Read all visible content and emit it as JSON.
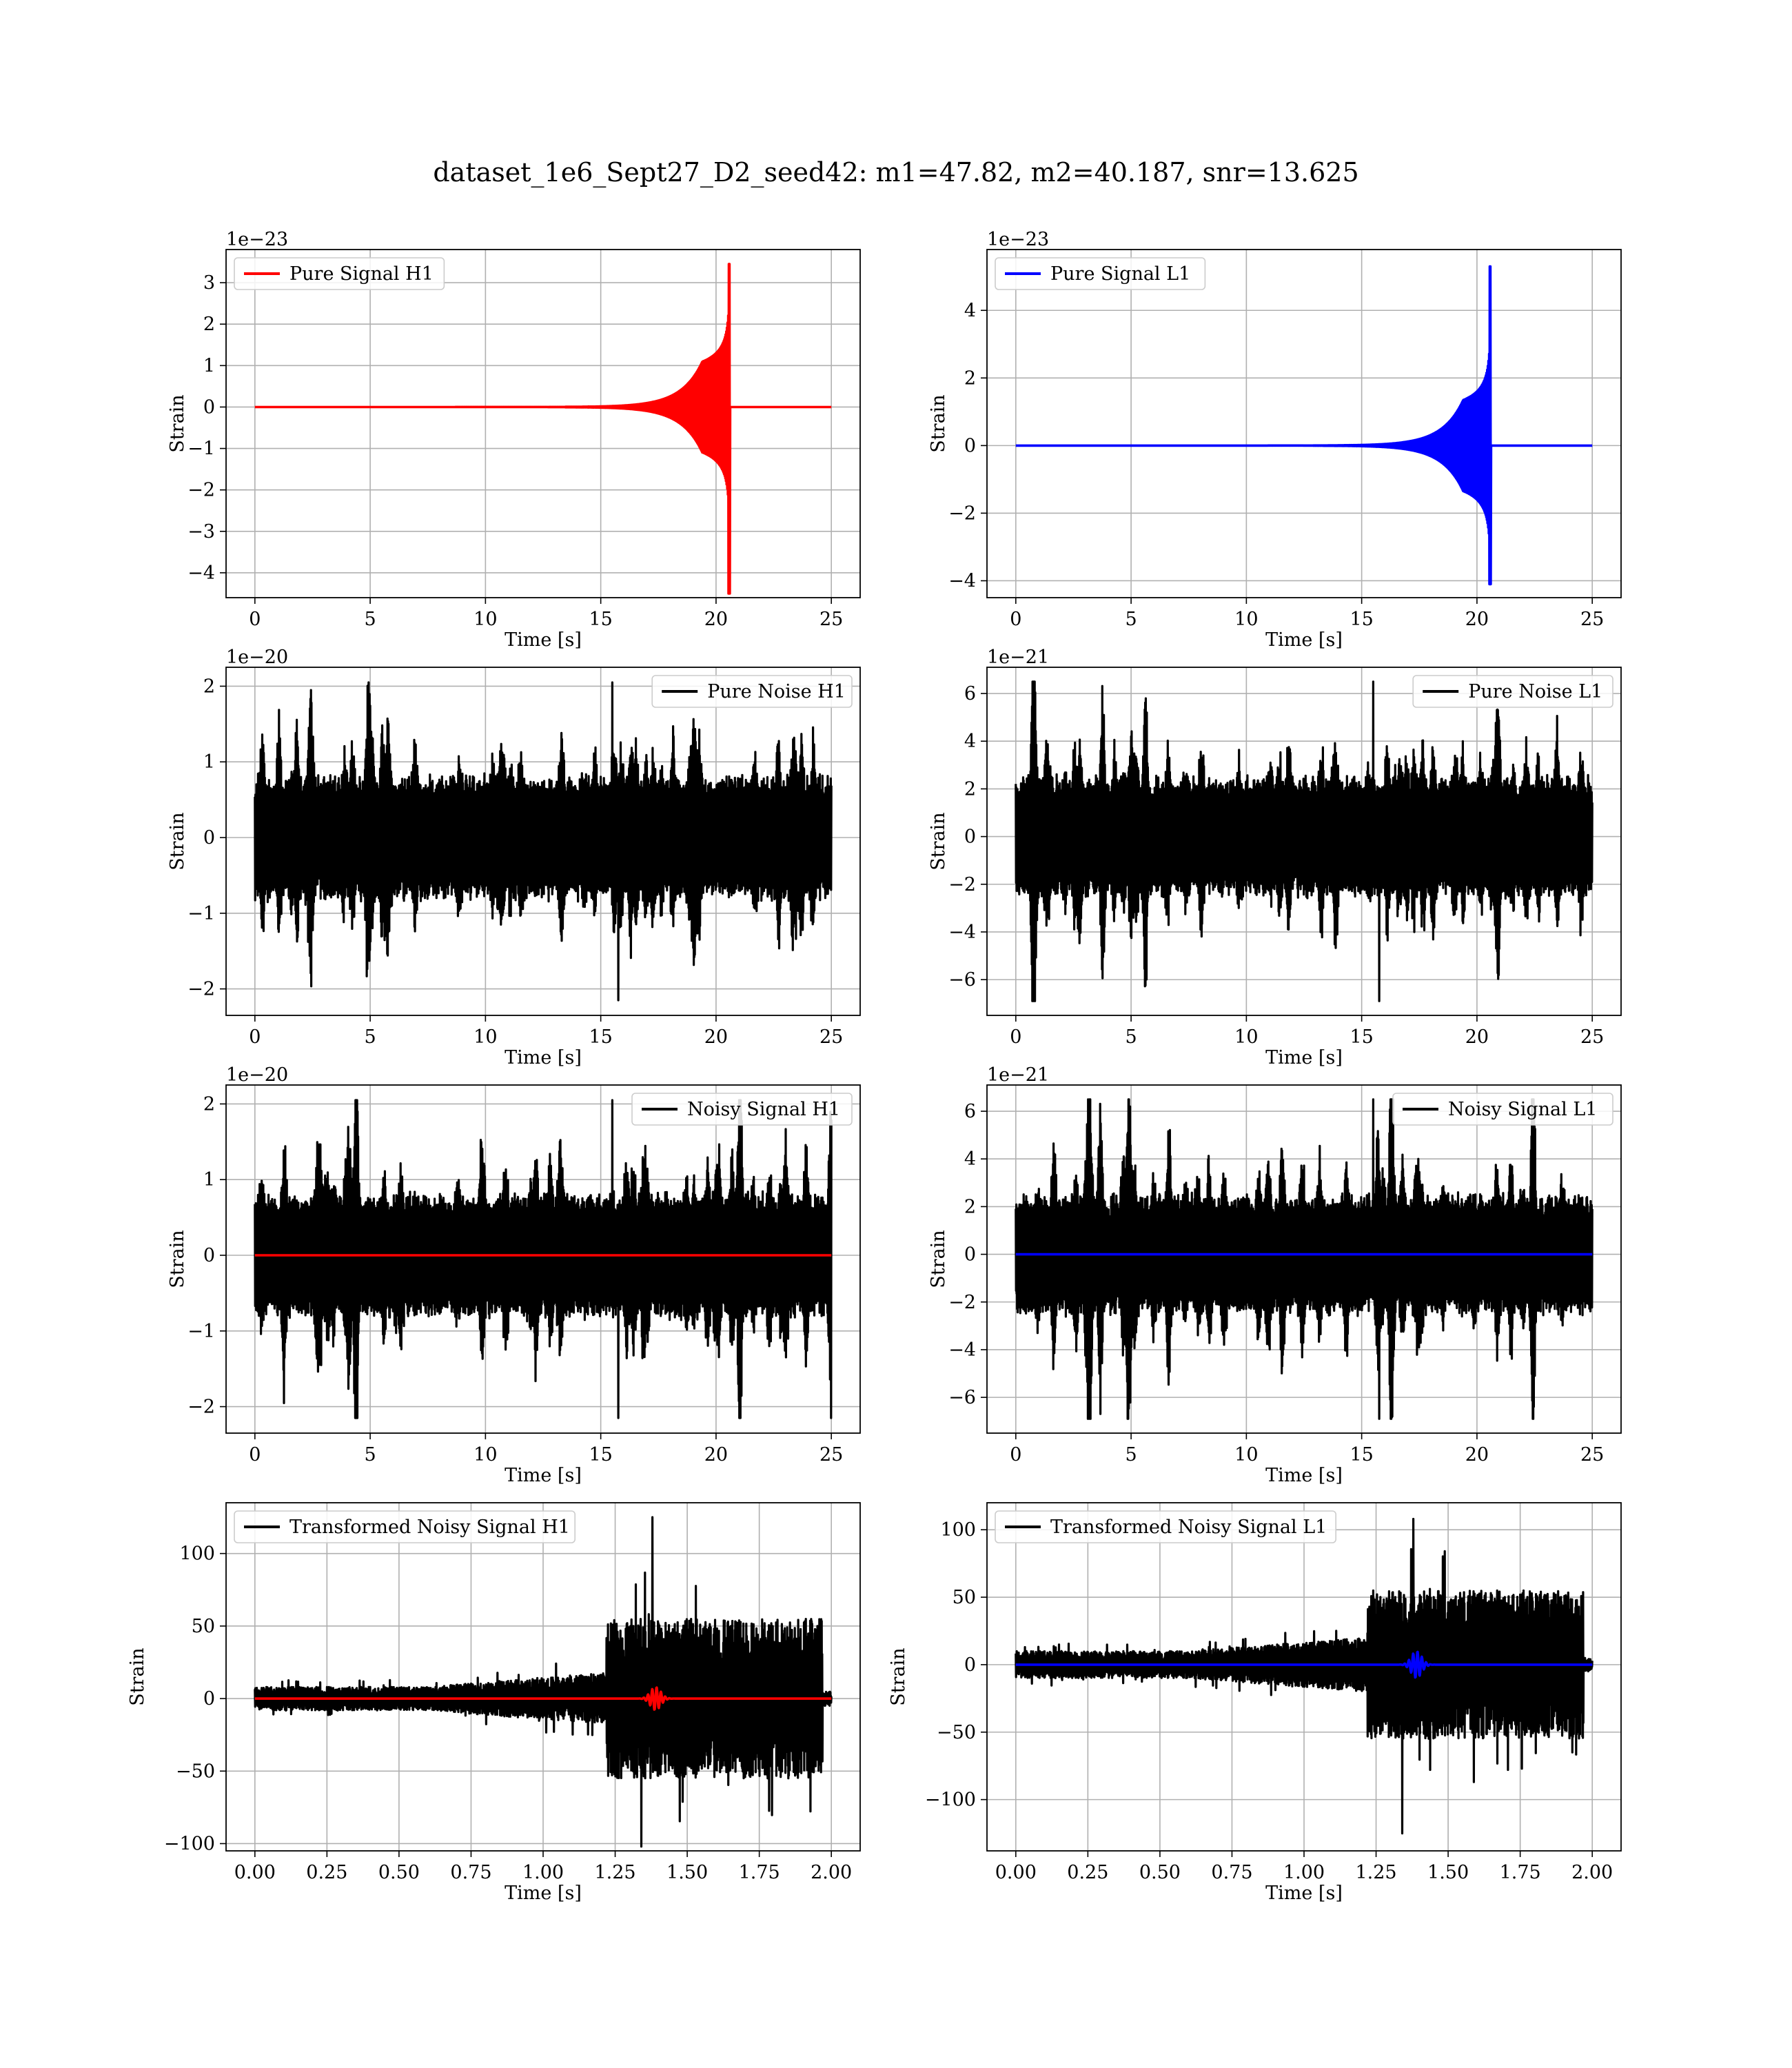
{
  "figure": {
    "suptitle": "dataset_1e6_Sept27_D2_seed42: m1=47.82, m2=40.187, snr=13.625"
  },
  "colors": {
    "h1_signal": "#ff0000",
    "l1_signal": "#0000ff",
    "noise": "#000000",
    "grid": "#b0b0b0"
  },
  "chart_data": [
    {
      "id": "pure-signal-h1",
      "type": "line",
      "xlabel": "Time [s]",
      "ylabel": "Strain",
      "offset_text": "1e−23",
      "xlim": [
        -1.25,
        26.25
      ],
      "ylim": [
        -4.6,
        3.8
      ],
      "xticks": [
        0,
        5,
        10,
        15,
        20,
        25
      ],
      "xtick_labels": [
        "0",
        "5",
        "10",
        "15",
        "20",
        "25"
      ],
      "yticks": [
        -4,
        -3,
        -2,
        -1,
        0,
        1,
        2,
        3
      ],
      "ytick_labels": [
        "−4",
        "−3",
        "−2",
        "−1",
        "0",
        "1",
        "2",
        "3"
      ],
      "legend": {
        "position": "upper left"
      },
      "series": [
        {
          "name": "Pure Signal H1",
          "color": "#ff0000",
          "kind": "chirp",
          "t_start": 0,
          "t_end": 25,
          "t_merger": 20.6,
          "peak_pos": 3.45,
          "peak_neg": -4.5,
          "envelope_at_20": 1.3
        }
      ]
    },
    {
      "id": "pure-signal-l1",
      "type": "line",
      "xlabel": "Time [s]",
      "ylabel": "Strain",
      "offset_text": "1e−23",
      "xlim": [
        -1.25,
        26.25
      ],
      "ylim": [
        -4.5,
        5.8
      ],
      "xticks": [
        0,
        5,
        10,
        15,
        20,
        25
      ],
      "xtick_labels": [
        "0",
        "5",
        "10",
        "15",
        "20",
        "25"
      ],
      "yticks": [
        -4,
        -2,
        0,
        2,
        4
      ],
      "ytick_labels": [
        "−4",
        "−2",
        "0",
        "2",
        "4"
      ],
      "legend": {
        "position": "upper left"
      },
      "series": [
        {
          "name": "Pure Signal L1",
          "color": "#0000ff",
          "kind": "chirp",
          "t_start": 0,
          "t_end": 25,
          "t_merger": 20.6,
          "peak_pos": 5.3,
          "peak_neg": -4.1,
          "envelope_at_20": 1.6
        }
      ]
    },
    {
      "id": "pure-noise-h1",
      "type": "line",
      "xlabel": "Time [s]",
      "ylabel": "Strain",
      "offset_text": "1e−20",
      "xlim": [
        -1.25,
        26.25
      ],
      "ylim": [
        -2.35,
        2.25
      ],
      "xticks": [
        0,
        5,
        10,
        15,
        20,
        25
      ],
      "xtick_labels": [
        "0",
        "5",
        "10",
        "15",
        "20",
        "25"
      ],
      "yticks": [
        -2,
        -1,
        0,
        1,
        2
      ],
      "ytick_labels": [
        "−2",
        "−1",
        "0",
        "1",
        "2"
      ],
      "legend": {
        "position": "upper right"
      },
      "series": [
        {
          "name": "Pure Noise H1",
          "color": "#000000",
          "kind": "noise",
          "t_start": 0,
          "t_end": 25,
          "base_amplitude": 0.75,
          "peak_pos": 2.05,
          "peak_neg": -2.15
        }
      ]
    },
    {
      "id": "pure-noise-l1",
      "type": "line",
      "xlabel": "Time [s]",
      "ylabel": "Strain",
      "offset_text": "1e−21",
      "xlim": [
        -1.25,
        26.25
      ],
      "ylim": [
        -7.5,
        7.1
      ],
      "xticks": [
        0,
        5,
        10,
        15,
        20,
        25
      ],
      "xtick_labels": [
        "0",
        "5",
        "10",
        "15",
        "20",
        "25"
      ],
      "yticks": [
        -6,
        -4,
        -2,
        0,
        2,
        4,
        6
      ],
      "ytick_labels": [
        "−6",
        "−4",
        "−2",
        "0",
        "2",
        "4",
        "6"
      ],
      "legend": {
        "position": "upper right"
      },
      "series": [
        {
          "name": "Pure Noise L1",
          "color": "#000000",
          "kind": "noise",
          "t_start": 0,
          "t_end": 25,
          "base_amplitude": 2.3,
          "peak_pos": 6.5,
          "peak_neg": -6.9
        }
      ]
    },
    {
      "id": "noisy-signal-h1",
      "type": "line",
      "xlabel": "Time [s]",
      "ylabel": "Strain",
      "offset_text": "1e−20",
      "xlim": [
        -1.25,
        26.25
      ],
      "ylim": [
        -2.35,
        2.25
      ],
      "xticks": [
        0,
        5,
        10,
        15,
        20,
        25
      ],
      "xtick_labels": [
        "0",
        "5",
        "10",
        "15",
        "20",
        "25"
      ],
      "yticks": [
        -2,
        -1,
        0,
        1,
        2
      ],
      "ytick_labels": [
        "−2",
        "−1",
        "0",
        "1",
        "2"
      ],
      "legend": {
        "position": "upper right"
      },
      "series": [
        {
          "name": "Noisy Signal H1",
          "color": "#000000",
          "kind": "noise",
          "t_start": 0,
          "t_end": 25,
          "base_amplitude": 0.75,
          "peak_pos": 2.05,
          "peak_neg": -2.15
        },
        {
          "color": "#ff0000",
          "kind": "flat",
          "t_start": 0,
          "t_end": 25,
          "value": 0
        }
      ]
    },
    {
      "id": "noisy-signal-l1",
      "type": "line",
      "xlabel": "Time [s]",
      "ylabel": "Strain",
      "offset_text": "1e−21",
      "xlim": [
        -1.25,
        26.25
      ],
      "ylim": [
        -7.5,
        7.1
      ],
      "xticks": [
        0,
        5,
        10,
        15,
        20,
        25
      ],
      "xtick_labels": [
        "0",
        "5",
        "10",
        "15",
        "20",
        "25"
      ],
      "yticks": [
        -6,
        -4,
        -2,
        0,
        2,
        4,
        6
      ],
      "ytick_labels": [
        "−6",
        "−4",
        "−2",
        "0",
        "2",
        "4",
        "6"
      ],
      "legend": {
        "position": "upper right"
      },
      "series": [
        {
          "name": "Noisy Signal L1",
          "color": "#000000",
          "kind": "noise",
          "t_start": 0,
          "t_end": 25,
          "base_amplitude": 2.3,
          "peak_pos": 6.5,
          "peak_neg": -6.9
        },
        {
          "color": "#0000ff",
          "kind": "flat",
          "t_start": 0,
          "t_end": 25,
          "value": 0
        }
      ]
    },
    {
      "id": "transformed-noisy-signal-h1",
      "type": "line",
      "xlabel": "Time [s]",
      "ylabel": "Strain",
      "offset_text": "",
      "xlim": [
        -0.1,
        2.1
      ],
      "ylim": [
        -105,
        135
      ],
      "xticks": [
        0,
        0.25,
        0.5,
        0.75,
        1.0,
        1.25,
        1.5,
        1.75,
        2.0
      ],
      "xtick_labels": [
        "0.00",
        "0.25",
        "0.50",
        "0.75",
        "1.00",
        "1.25",
        "1.50",
        "1.75",
        "2.00"
      ],
      "yticks": [
        -100,
        -50,
        0,
        50,
        100
      ],
      "ytick_labels": [
        "−100",
        "−50",
        "0",
        "50",
        "100"
      ],
      "legend": {
        "position": "upper left"
      },
      "series": [
        {
          "name": "Transformed Noisy Signal H1",
          "color": "#000000",
          "kind": "whitened",
          "t_start": 0,
          "t_end": 2.0,
          "low_amplitude": 8,
          "mid_amplitude": 18,
          "high_amplitude": 55,
          "t_jump": 1.22,
          "peak_pos": 125,
          "peak_neg": -102
        },
        {
          "color": "#ff0000",
          "kind": "burst",
          "t_start": 0,
          "t_end": 2.0,
          "t_center": 1.39,
          "peak": 8
        }
      ]
    },
    {
      "id": "transformed-noisy-signal-l1",
      "type": "line",
      "xlabel": "Time [s]",
      "ylabel": "Strain",
      "offset_text": "",
      "xlim": [
        -0.1,
        2.1
      ],
      "ylim": [
        -138,
        120
      ],
      "xticks": [
        0,
        0.25,
        0.5,
        0.75,
        1.0,
        1.25,
        1.5,
        1.75,
        2.0
      ],
      "xtick_labels": [
        "0.00",
        "0.25",
        "0.50",
        "0.75",
        "1.00",
        "1.25",
        "1.50",
        "1.75",
        "2.00"
      ],
      "yticks": [
        -100,
        -50,
        0,
        50,
        100
      ],
      "ytick_labels": [
        "−100",
        "−50",
        "0",
        "50",
        "100"
      ],
      "legend": {
        "position": "upper left"
      },
      "series": [
        {
          "name": "Transformed Noisy Signal L1",
          "color": "#000000",
          "kind": "whitened",
          "t_start": 0,
          "t_end": 2.0,
          "low_amplitude": 10,
          "mid_amplitude": 20,
          "high_amplitude": 55,
          "t_jump": 1.22,
          "peak_pos": 108,
          "peak_neg": -125
        },
        {
          "color": "#0000ff",
          "kind": "burst",
          "t_start": 0,
          "t_end": 2.0,
          "t_center": 1.39,
          "peak": 10
        }
      ]
    }
  ]
}
